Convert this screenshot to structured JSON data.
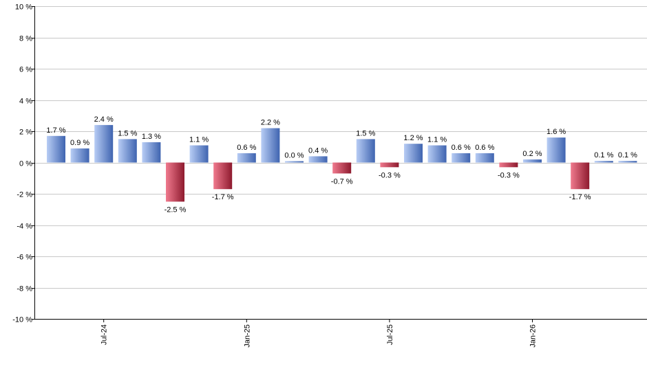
{
  "chart_data": {
    "type": "bar",
    "ylim": [
      -10,
      10
    ],
    "y_ticks": [
      10,
      8,
      6,
      4,
      2,
      0,
      -2,
      -4,
      -6,
      -8,
      -10
    ],
    "y_tick_labels": [
      "10 %",
      "8 %",
      "6 %",
      "4 %",
      "2 %",
      "0 %",
      "-2 %",
      "-4 %",
      "-6 %",
      "-8 %",
      "-10 %"
    ],
    "x_tick_labels": [
      {
        "label": "Jul-24",
        "index": 2
      },
      {
        "label": "Jan-25",
        "index": 8
      },
      {
        "label": "Jul-25",
        "index": 14
      },
      {
        "label": "Jan-26",
        "index": 20
      }
    ],
    "values": [
      1.7,
      0.9,
      2.4,
      1.5,
      1.3,
      -2.5,
      1.1,
      -1.7,
      0.6,
      2.2,
      0.0,
      0.4,
      -0.7,
      1.5,
      -0.3,
      1.2,
      1.1,
      0.6,
      0.6,
      -0.3,
      0.2,
      1.6,
      -1.7,
      0.1,
      0.1
    ],
    "value_labels": [
      "1.7 %",
      "0.9 %",
      "2.4 %",
      "1.5 %",
      "1.3 %",
      "-2.5 %",
      "1.1 %",
      "-1.7 %",
      "0.6 %",
      "2.2 %",
      "0.0 %",
      "0.4 %",
      "-0.7 %",
      "1.5 %",
      "-0.3 %",
      "1.2 %",
      "1.1 %",
      "0.6 %",
      "0.6 %",
      "-0.3 %",
      "0.2 %",
      "1.6 %",
      "-1.7 %",
      "0.1 %",
      "0.1 %"
    ],
    "grid": true,
    "colors": {
      "positive_light": "#b8cdf5",
      "positive_dark": "#3f64b0",
      "negative_light": "#f07a8e",
      "negative_dark": "#8e1a2e",
      "grid": "#c8c8c8",
      "axis": "#000000"
    }
  }
}
